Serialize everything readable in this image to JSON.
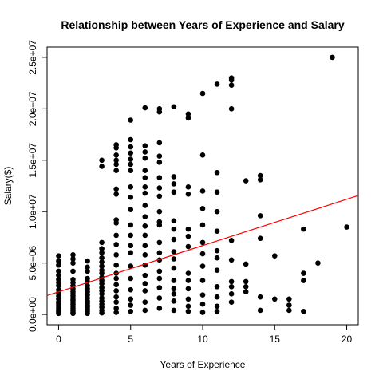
{
  "chart_data": {
    "type": "scatter",
    "title": "Relationship between Years of Experience and Salary",
    "xlabel": "Years of Experience",
    "ylabel": "Salary($)",
    "xlim": [
      -0.8,
      20.8
    ],
    "ylim": [
      -1000000,
      26000000
    ],
    "x_ticks": [
      0,
      5,
      10,
      15,
      20
    ],
    "x_tick_labels": [
      "0",
      "5",
      "10",
      "15",
      "20"
    ],
    "y_ticks": [
      0,
      5000000,
      10000000,
      15000000,
      20000000,
      25000000
    ],
    "y_tick_labels": [
      "0.0e+00",
      "5.0e+06",
      "1.0e+07",
      "1.5e+07",
      "2.0e+07",
      "2.5e+07"
    ],
    "grid": false,
    "point_color": "#000000",
    "fit_line": {
      "intercept": 2200000,
      "slope": 450000,
      "color": "#ff0000"
    },
    "points": [
      [
        0,
        100000
      ],
      [
        0,
        250000
      ],
      [
        0,
        400000
      ],
      [
        0,
        600000
      ],
      [
        0,
        800000
      ],
      [
        0,
        1000000
      ],
      [
        0,
        1200000
      ],
      [
        0,
        1500000
      ],
      [
        0,
        1800000
      ],
      [
        0,
        2100000
      ],
      [
        0,
        2400000
      ],
      [
        0,
        2800000
      ],
      [
        0,
        3100000
      ],
      [
        0,
        3400000
      ],
      [
        0,
        3800000
      ],
      [
        0,
        4200000
      ],
      [
        0,
        4800000
      ],
      [
        0,
        5200000
      ],
      [
        0,
        5700000
      ],
      [
        1,
        100000
      ],
      [
        1,
        200000
      ],
      [
        1,
        400000
      ],
      [
        1,
        600000
      ],
      [
        1,
        800000
      ],
      [
        1,
        1000000
      ],
      [
        1,
        1200000
      ],
      [
        1,
        1400000
      ],
      [
        1,
        1600000
      ],
      [
        1,
        1800000
      ],
      [
        1,
        2000000
      ],
      [
        1,
        2200000
      ],
      [
        1,
        2500000
      ],
      [
        1,
        2800000
      ],
      [
        1,
        3100000
      ],
      [
        1,
        3400000
      ],
      [
        1,
        4200000
      ],
      [
        1,
        5000000
      ],
      [
        1,
        5400000
      ],
      [
        1,
        5800000
      ],
      [
        2,
        100000
      ],
      [
        2,
        300000
      ],
      [
        2,
        500000
      ],
      [
        2,
        700000
      ],
      [
        2,
        900000
      ],
      [
        2,
        1100000
      ],
      [
        2,
        1300000
      ],
      [
        2,
        1600000
      ],
      [
        2,
        1900000
      ],
      [
        2,
        2200000
      ],
      [
        2,
        2500000
      ],
      [
        2,
        2800000
      ],
      [
        2,
        3200000
      ],
      [
        2,
        3500000
      ],
      [
        2,
        4200000
      ],
      [
        2,
        4600000
      ],
      [
        2,
        5200000
      ],
      [
        3,
        150000
      ],
      [
        3,
        400000
      ],
      [
        3,
        700000
      ],
      [
        3,
        1000000
      ],
      [
        3,
        1300000
      ],
      [
        3,
        1600000
      ],
      [
        3,
        2000000
      ],
      [
        3,
        2300000
      ],
      [
        3,
        2600000
      ],
      [
        3,
        3000000
      ],
      [
        3,
        3300000
      ],
      [
        3,
        3600000
      ],
      [
        3,
        4000000
      ],
      [
        3,
        4300000
      ],
      [
        3,
        4700000
      ],
      [
        3,
        5100000
      ],
      [
        3,
        5500000
      ],
      [
        3,
        6000000
      ],
      [
        3,
        6400000
      ],
      [
        3,
        7000000
      ],
      [
        3,
        14400000
      ],
      [
        3,
        15000000
      ],
      [
        4,
        200000
      ],
      [
        4,
        600000
      ],
      [
        4,
        1200000
      ],
      [
        4,
        1700000
      ],
      [
        4,
        2300000
      ],
      [
        4,
        2900000
      ],
      [
        4,
        3500000
      ],
      [
        4,
        4000000
      ],
      [
        4,
        4800000
      ],
      [
        4,
        5800000
      ],
      [
        4,
        6800000
      ],
      [
        4,
        7700000
      ],
      [
        4,
        8900000
      ],
      [
        4,
        9200000
      ],
      [
        4,
        11700000
      ],
      [
        4,
        12200000
      ],
      [
        4,
        14000000
      ],
      [
        4,
        14600000
      ],
      [
        4,
        15000000
      ],
      [
        4,
        15500000
      ],
      [
        4,
        16200000
      ],
      [
        4,
        16500000
      ],
      [
        5,
        300000
      ],
      [
        5,
        900000
      ],
      [
        5,
        1500000
      ],
      [
        5,
        2400000
      ],
      [
        5,
        3500000
      ],
      [
        5,
        4700000
      ],
      [
        5,
        6000000
      ],
      [
        5,
        6700000
      ],
      [
        5,
        7700000
      ],
      [
        5,
        8700000
      ],
      [
        5,
        10200000
      ],
      [
        5,
        11400000
      ],
      [
        5,
        12400000
      ],
      [
        5,
        14000000
      ],
      [
        5,
        14600000
      ],
      [
        5,
        15100000
      ],
      [
        5,
        15700000
      ],
      [
        5,
        16300000
      ],
      [
        5,
        17000000
      ],
      [
        5,
        18900000
      ],
      [
        6,
        400000
      ],
      [
        6,
        1200000
      ],
      [
        6,
        2300000
      ],
      [
        6,
        3000000
      ],
      [
        6,
        3800000
      ],
      [
        6,
        4800000
      ],
      [
        6,
        5800000
      ],
      [
        6,
        6700000
      ],
      [
        6,
        7700000
      ],
      [
        6,
        8600000
      ],
      [
        6,
        9500000
      ],
      [
        6,
        10600000
      ],
      [
        6,
        11800000
      ],
      [
        6,
        12400000
      ],
      [
        6,
        13300000
      ],
      [
        6,
        14000000
      ],
      [
        6,
        15200000
      ],
      [
        6,
        15800000
      ],
      [
        6,
        16400000
      ],
      [
        6,
        20100000
      ],
      [
        7,
        600000
      ],
      [
        7,
        1600000
      ],
      [
        7,
        2600000
      ],
      [
        7,
        3500000
      ],
      [
        7,
        4200000
      ],
      [
        7,
        5300000
      ],
      [
        7,
        6000000
      ],
      [
        7,
        7000000
      ],
      [
        7,
        8700000
      ],
      [
        7,
        9000000
      ],
      [
        7,
        10000000
      ],
      [
        7,
        11500000
      ],
      [
        7,
        12300000
      ],
      [
        7,
        13300000
      ],
      [
        7,
        14800000
      ],
      [
        7,
        15400000
      ],
      [
        7,
        16700000
      ],
      [
        7,
        19700000
      ],
      [
        7,
        20000000
      ],
      [
        8,
        400000
      ],
      [
        8,
        1300000
      ],
      [
        8,
        2000000
      ],
      [
        8,
        2500000
      ],
      [
        8,
        3300000
      ],
      [
        8,
        4500000
      ],
      [
        8,
        5400000
      ],
      [
        8,
        6100000
      ],
      [
        8,
        7300000
      ],
      [
        8,
        8300000
      ],
      [
        8,
        9100000
      ],
      [
        8,
        11900000
      ],
      [
        8,
        12700000
      ],
      [
        8,
        13400000
      ],
      [
        8,
        20200000
      ],
      [
        9,
        300000
      ],
      [
        9,
        800000
      ],
      [
        9,
        1500000
      ],
      [
        9,
        2500000
      ],
      [
        9,
        3300000
      ],
      [
        9,
        4000000
      ],
      [
        9,
        6600000
      ],
      [
        9,
        7600000
      ],
      [
        9,
        8300000
      ],
      [
        9,
        11700000
      ],
      [
        9,
        12400000
      ],
      [
        9,
        19100000
      ],
      [
        9,
        19500000
      ],
      [
        10,
        200000
      ],
      [
        10,
        1000000
      ],
      [
        10,
        1900000
      ],
      [
        10,
        3300000
      ],
      [
        10,
        4700000
      ],
      [
        10,
        5900000
      ],
      [
        10,
        7000000
      ],
      [
        10,
        8700000
      ],
      [
        10,
        10300000
      ],
      [
        10,
        12000000
      ],
      [
        10,
        15500000
      ],
      [
        10,
        21500000
      ],
      [
        11,
        300000
      ],
      [
        11,
        800000
      ],
      [
        11,
        1700000
      ],
      [
        11,
        2700000
      ],
      [
        11,
        4300000
      ],
      [
        11,
        5500000
      ],
      [
        11,
        6200000
      ],
      [
        11,
        8100000
      ],
      [
        11,
        10000000
      ],
      [
        11,
        11900000
      ],
      [
        11,
        13800000
      ],
      [
        11,
        22400000
      ],
      [
        12,
        1200000
      ],
      [
        12,
        2000000
      ],
      [
        12,
        2700000
      ],
      [
        12,
        3200000
      ],
      [
        12,
        5300000
      ],
      [
        12,
        7200000
      ],
      [
        12,
        20000000
      ],
      [
        12,
        22300000
      ],
      [
        12,
        22800000
      ],
      [
        12,
        23000000
      ],
      [
        13,
        2200000
      ],
      [
        13,
        2700000
      ],
      [
        13,
        3200000
      ],
      [
        13,
        4900000
      ],
      [
        13,
        13000000
      ],
      [
        14,
        400000
      ],
      [
        14,
        1700000
      ],
      [
        14,
        7400000
      ],
      [
        14,
        9600000
      ],
      [
        14,
        13100000
      ],
      [
        14,
        13500000
      ],
      [
        15,
        1500000
      ],
      [
        15,
        5700000
      ],
      [
        16,
        400000
      ],
      [
        16,
        900000
      ],
      [
        16,
        1500000
      ],
      [
        17,
        300000
      ],
      [
        17,
        3300000
      ],
      [
        17,
        4000000
      ],
      [
        17,
        8300000
      ],
      [
        18,
        5000000
      ],
      [
        19,
        25000000
      ],
      [
        20,
        8500000
      ]
    ]
  }
}
